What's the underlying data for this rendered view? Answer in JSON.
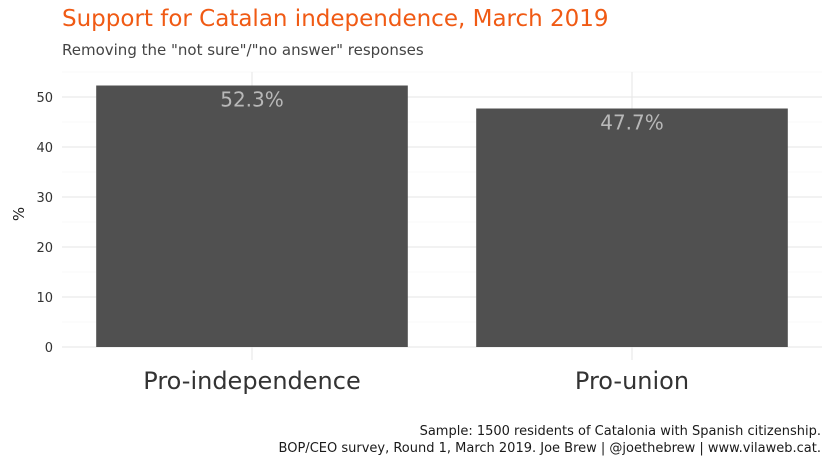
{
  "chart_data": {
    "type": "bar",
    "title": "Support for Catalan independence, March 2019",
    "subtitle": "Removing the \"not sure\"/\"no answer\" responses",
    "xlabel": "",
    "ylabel": "%",
    "categories": [
      "Pro-independence",
      "Pro-union"
    ],
    "values": [
      52.3,
      47.7
    ],
    "value_labels": [
      "52.3%",
      "47.7%"
    ],
    "ylim": [
      0,
      55
    ],
    "yticks": [
      0,
      10,
      20,
      30,
      40,
      50
    ],
    "grid": true,
    "legend": "none",
    "bar_color": "#4a4a4a",
    "label_color": "#b8b8b8",
    "caption_lines": [
      "Sample: 1500 residents of Catalonia with Spanish citizenship.",
      "BOP/CEO survey, Round 1, March 2019. Joe Brew | @joethebrew | www.vilaweb.cat."
    ]
  }
}
